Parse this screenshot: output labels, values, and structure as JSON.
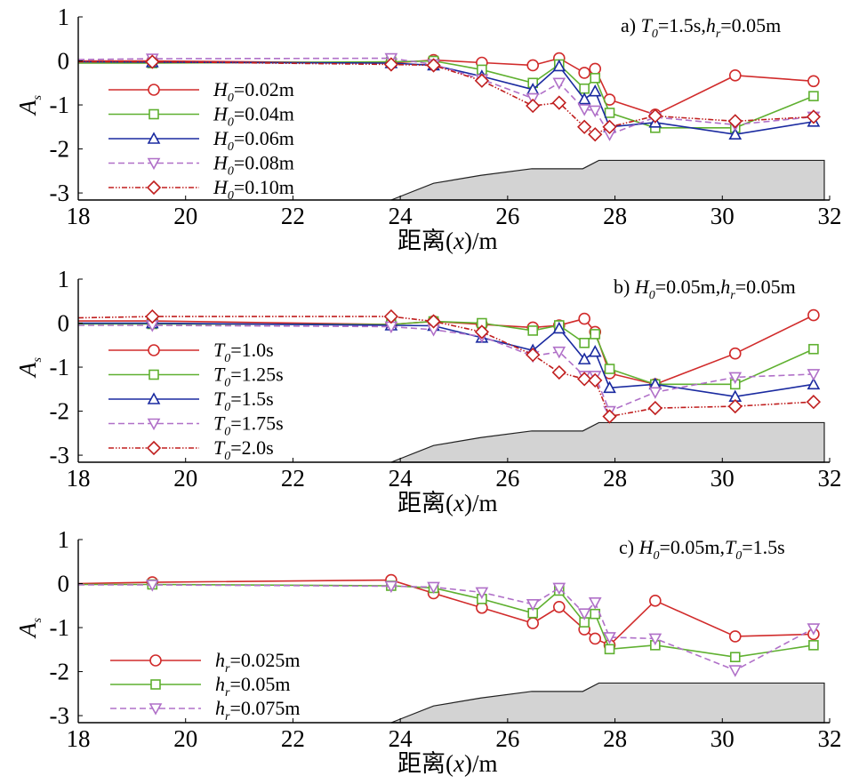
{
  "chart_data": [
    {
      "type": "line",
      "panel_label": {
        "prefix": "a)",
        "parts": [
          {
            "sym": "T",
            "sub": "0",
            "val": "=1.5s,"
          },
          {
            "sym": "h",
            "sub": "r",
            "val": "=0.05m"
          }
        ]
      },
      "xlabel": {
        "zh": "距离",
        "var": "x",
        "unit": "/m"
      },
      "ylabel": {
        "sym": "A",
        "sub": "s"
      },
      "xlim": [
        18,
        32
      ],
      "ylim": [
        -3.16,
        1
      ],
      "xticks": [
        18,
        20,
        22,
        24,
        26,
        28,
        30,
        32
      ],
      "yticks": [
        1,
        0,
        -1,
        -2,
        -3
      ],
      "legend_position": "left",
      "grid": false,
      "x": [
        18,
        19.38,
        23.83,
        24.62,
        25.52,
        26.47,
        26.96,
        27.43,
        27.63,
        27.9,
        28.75,
        30.24,
        31.7
      ],
      "series": [
        {
          "name": "H0=0.02m",
          "label": {
            "sym": "H",
            "sub": "0",
            "val": "=0.02m"
          },
          "color": "#d12b2b",
          "marker": "circle",
          "dash": "solid",
          "values": [
            0.0,
            0.0,
            -0.05,
            0.02,
            -0.04,
            -0.1,
            0.06,
            -0.27,
            -0.18,
            -0.88,
            -1.22,
            -0.33,
            -0.46
          ]
        },
        {
          "name": "H0=0.04m",
          "label": {
            "sym": "H",
            "sub": "0",
            "val": "=0.04m"
          },
          "color": "#5fb030",
          "marker": "square",
          "dash": "solid",
          "values": [
            -0.05,
            -0.05,
            -0.02,
            0.0,
            -0.2,
            -0.5,
            -0.08,
            -0.63,
            -0.39,
            -1.18,
            -1.52,
            -1.52,
            -0.8
          ]
        },
        {
          "name": "H0=0.06m",
          "label": {
            "sym": "H",
            "sub": "0",
            "val": "=0.06m"
          },
          "color": "#1a2aa0",
          "marker": "triangle-up",
          "dash": "solid",
          "values": [
            -0.02,
            -0.03,
            -0.05,
            -0.1,
            -0.35,
            -0.65,
            -0.12,
            -0.87,
            -0.69,
            -1.5,
            -1.4,
            -1.67,
            -1.38
          ]
        },
        {
          "name": "H0=0.08m",
          "label": {
            "sym": "H",
            "sub": "0",
            "val": "=0.08m"
          },
          "color": "#b070c8",
          "marker": "triangle-down",
          "dash": "dashed",
          "values": [
            0.03,
            0.05,
            0.06,
            -0.08,
            -0.42,
            -0.85,
            -0.5,
            -1.1,
            -1.13,
            -1.67,
            -1.28,
            -1.45,
            -1.27
          ]
        },
        {
          "name": "H0=0.10m",
          "label": {
            "sym": "H",
            "sub": "0",
            "val": "=0.10m"
          },
          "color": "#c01e1e",
          "marker": "diamond",
          "dash": "dashdot",
          "values": [
            -0.02,
            -0.02,
            -0.08,
            -0.1,
            -0.45,
            -1.02,
            -0.95,
            -1.5,
            -1.67,
            -1.5,
            -1.25,
            -1.37,
            -1.27
          ]
        }
      ],
      "bathymetry": {
        "x": [
          23.83,
          24.62,
          25.5,
          26.45,
          27.4,
          27.7,
          31.9,
          31.9
        ],
        "y": [
          -3.16,
          -2.78,
          -2.6,
          -2.45,
          -2.45,
          -2.26,
          -2.26,
          -3.16
        ]
      }
    },
    {
      "type": "line",
      "panel_label": {
        "prefix": "b)",
        "parts": [
          {
            "sym": "H",
            "sub": "0",
            "val": "=0.05m,"
          },
          {
            "sym": "h",
            "sub": "r",
            "val": "=0.05m"
          }
        ]
      },
      "xlabel": {
        "zh": "距离",
        "var": "x",
        "unit": "/m"
      },
      "ylabel": {
        "sym": "A",
        "sub": "s"
      },
      "xlim": [
        18,
        32
      ],
      "ylim": [
        -3.16,
        1
      ],
      "xticks": [
        18,
        20,
        22,
        24,
        26,
        28,
        30,
        32
      ],
      "yticks": [
        1,
        0,
        -1,
        -2,
        -3
      ],
      "legend_position": "left",
      "grid": false,
      "x": [
        18,
        19.38,
        23.83,
        24.62,
        25.52,
        26.47,
        26.96,
        27.43,
        27.63,
        27.9,
        28.75,
        30.24,
        31.7
      ],
      "series": [
        {
          "name": "T0=1.0s",
          "label": {
            "sym": "T",
            "sub": "0",
            "val": "=1.0s"
          },
          "color": "#d12b2b",
          "marker": "circle",
          "dash": "solid",
          "values": [
            0.05,
            0.05,
            -0.03,
            0.04,
            -0.03,
            -0.1,
            -0.05,
            0.1,
            -0.2,
            -1.14,
            -1.39,
            -0.69,
            0.18
          ]
        },
        {
          "name": "T0=1.25s",
          "label": {
            "sym": "T",
            "sub": "0",
            "val": "=1.25s"
          },
          "color": "#5fb030",
          "marker": "square",
          "dash": "solid",
          "values": [
            -0.02,
            -0.02,
            -0.03,
            0.04,
            0.0,
            -0.17,
            -0.05,
            -0.45,
            -0.25,
            -1.04,
            -1.39,
            -1.39,
            -0.59
          ]
        },
        {
          "name": "T0=1.5s",
          "label": {
            "sym": "T",
            "sub": "0",
            "val": "=1.5s"
          },
          "color": "#1a2aa0",
          "marker": "triangle-up",
          "dash": "solid",
          "values": [
            0.0,
            0.0,
            -0.05,
            -0.06,
            -0.33,
            -0.62,
            -0.12,
            -0.82,
            -0.65,
            -1.47,
            -1.39,
            -1.67,
            -1.39
          ]
        },
        {
          "name": "T0=1.75s",
          "label": {
            "sym": "T",
            "sub": "0",
            "val": "=1.75s"
          },
          "color": "#b070c8",
          "marker": "triangle-down",
          "dash": "dashed",
          "values": [
            -0.05,
            -0.05,
            -0.08,
            -0.15,
            -0.3,
            -0.75,
            -0.65,
            -1.2,
            -1.2,
            -2.0,
            -1.57,
            -1.23,
            -1.16
          ]
        },
        {
          "name": "T0=2.0s",
          "label": {
            "sym": "T",
            "sub": "0",
            "val": "=2.0s"
          },
          "color": "#c01e1e",
          "marker": "diamond",
          "dash": "dashdot",
          "values": [
            0.12,
            0.15,
            0.15,
            0.04,
            -0.2,
            -0.72,
            -1.12,
            -1.27,
            -1.3,
            -2.12,
            -1.93,
            -1.89,
            -1.79
          ]
        }
      ],
      "bathymetry": {
        "x": [
          23.83,
          24.62,
          25.5,
          26.45,
          27.4,
          27.7,
          31.9,
          31.9
        ],
        "y": [
          -3.16,
          -2.78,
          -2.6,
          -2.45,
          -2.45,
          -2.26,
          -2.26,
          -3.16
        ]
      }
    },
    {
      "type": "line",
      "panel_label": {
        "prefix": "c)",
        "parts": [
          {
            "sym": "H",
            "sub": "0",
            "val": "=0.05m,"
          },
          {
            "sym": "T",
            "sub": "0",
            "val": "=1.5s"
          }
        ]
      },
      "xlabel": {
        "zh": "距离",
        "var": "x",
        "unit": "/m"
      },
      "ylabel": {
        "sym": "A",
        "sub": "s"
      },
      "xlim": [
        18,
        32
      ],
      "ylim": [
        -3.16,
        1
      ],
      "xticks": [
        18,
        20,
        22,
        24,
        26,
        28,
        30,
        32
      ],
      "yticks": [
        1,
        0,
        -1,
        -2,
        -3
      ],
      "legend_position": "lower-left",
      "grid": false,
      "x": [
        18,
        19.38,
        23.83,
        24.62,
        25.52,
        26.47,
        26.96,
        27.43,
        27.63,
        27.9,
        28.75,
        30.24,
        31.7
      ],
      "series": [
        {
          "name": "hr=0.025m",
          "label": {
            "sym": "h",
            "sub": "r",
            "val": "=0.025m"
          },
          "color": "#d12b2b",
          "marker": "circle",
          "dash": "solid",
          "values": [
            0.0,
            0.03,
            0.08,
            -0.22,
            -0.55,
            -0.9,
            -0.53,
            -1.04,
            -1.25,
            -1.4,
            -0.39,
            -1.2,
            -1.15
          ]
        },
        {
          "name": "hr=0.05m",
          "label": {
            "sym": "h",
            "sub": "r",
            "val": "=0.05m"
          },
          "color": "#5fb030",
          "marker": "square",
          "dash": "solid",
          "values": [
            -0.02,
            -0.02,
            -0.05,
            -0.1,
            -0.35,
            -0.67,
            -0.16,
            -0.88,
            -0.69,
            -1.49,
            -1.4,
            -1.67,
            -1.4
          ]
        },
        {
          "name": "hr=0.075m",
          "label": {
            "sym": "h",
            "sub": "r",
            "val": "=0.075m"
          },
          "color": "#b070c8",
          "marker": "triangle-down",
          "dash": "dashed",
          "values": [
            -0.03,
            -0.03,
            -0.06,
            -0.08,
            -0.2,
            -0.47,
            -0.1,
            -0.68,
            -0.43,
            -1.22,
            -1.25,
            -1.97,
            -1.02
          ]
        }
      ],
      "bathymetry": {
        "x": [
          23.83,
          24.62,
          25.5,
          26.45,
          27.4,
          27.7,
          31.9,
          31.9
        ],
        "y": [
          -3.16,
          -2.78,
          -2.6,
          -2.45,
          -2.45,
          -2.26,
          -2.26,
          -3.16
        ]
      }
    }
  ]
}
